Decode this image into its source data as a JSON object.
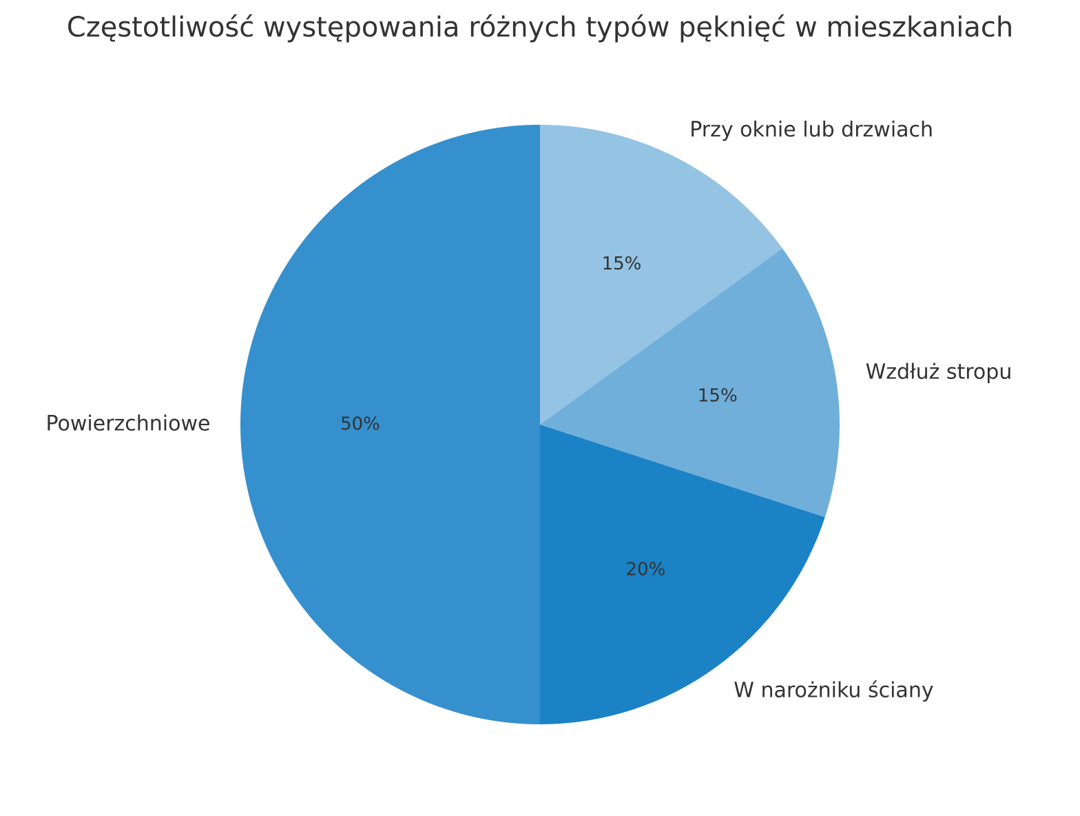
{
  "chart_data": {
    "type": "pie",
    "title": "Częstotliwość występowania różnych typów pęknięć w mieszkaniach",
    "categories": [
      "Powierzchniowe",
      "W narożniku ściany",
      "Wzdłuż stropu",
      "Przy oknie lub drzwiach"
    ],
    "values": [
      50,
      20,
      15,
      15
    ],
    "value_labels": [
      "50%",
      "20%",
      "15%",
      "15%"
    ],
    "colors": [
      "#3690ce",
      "#1b82c6",
      "#6fafda",
      "#94c3e4"
    ]
  }
}
